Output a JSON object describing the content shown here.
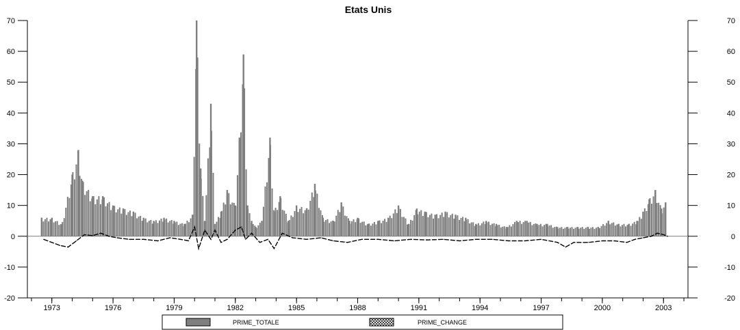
{
  "chart_data": {
    "type": "bar",
    "title": "Etats Unis",
    "xlabel": "",
    "ylabel": "",
    "ylim": [
      -20,
      70
    ],
    "y_ticks": [
      -20,
      -10,
      0,
      10,
      20,
      30,
      40,
      50,
      60,
      70
    ],
    "y_tick_labels": [
      "-20",
      "-10",
      "0",
      "10",
      "20",
      "30",
      "40",
      "50",
      "60",
      "70"
    ],
    "x_range": [
      1971.8,
      2004.2
    ],
    "x_ticks": [
      1973,
      1976,
      1979,
      1982,
      1985,
      1988,
      1991,
      1994,
      1997,
      2000,
      2003
    ],
    "x_tick_labels": [
      "1973",
      "1976",
      "1979",
      "1982",
      "1985",
      "1988",
      "1991",
      "1994",
      "1997",
      "2000",
      "2003"
    ],
    "grid": false,
    "legend_position": "bottom",
    "colors": {
      "bars": "#7f7f7f",
      "line": "#000000",
      "axis": "#000000"
    },
    "series": [
      {
        "name": "PRIME_TOTALE",
        "kind": "bar",
        "x": [
          1972.5,
          1973.0,
          1973.5,
          1974.0,
          1974.3,
          1974.5,
          1975.0,
          1975.5,
          1976.0,
          1976.5,
          1977.0,
          1977.5,
          1978.0,
          1978.5,
          1979.0,
          1979.5,
          1979.9,
          1980.1,
          1980.3,
          1980.5,
          1980.8,
          1981.0,
          1981.3,
          1981.6,
          1982.0,
          1982.2,
          1982.4,
          1982.6,
          1982.8,
          1983.0,
          1983.3,
          1983.7,
          1983.9,
          1984.2,
          1984.6,
          1985.0,
          1985.5,
          1985.9,
          1986.3,
          1986.8,
          1987.2,
          1987.6,
          1988.0,
          1988.5,
          1989.0,
          1989.5,
          1990.0,
          1990.5,
          1990.9,
          1991.3,
          1991.8,
          1992.3,
          1992.8,
          1993.3,
          1993.8,
          1994.3,
          1994.8,
          1995.3,
          1995.8,
          1996.3,
          1996.8,
          1997.3,
          1997.8,
          1998.3,
          1998.8,
          1999.3,
          1999.8,
          2000.3,
          2000.8,
          2001.3,
          2001.7,
          2002.0,
          2002.3,
          2002.6,
          2002.9,
          2003.1
        ],
        "values": [
          6,
          6,
          4,
          20,
          28,
          18,
          13,
          13,
          10,
          9,
          8,
          6,
          5,
          6,
          5,
          4,
          7,
          70,
          22,
          5,
          43,
          4,
          8,
          15,
          10,
          32,
          59,
          10,
          5,
          3,
          5,
          32,
          8,
          13,
          5,
          10,
          9,
          17,
          6,
          5,
          11,
          5,
          6,
          4,
          5,
          6,
          10,
          4,
          9,
          8,
          7,
          8,
          7,
          6,
          4,
          5,
          4,
          3,
          5,
          5,
          4,
          4,
          3,
          3,
          3,
          3,
          3,
          5,
          4,
          4,
          5,
          8,
          12,
          15,
          9,
          11
        ]
      },
      {
        "name": "PRIME_CHANGE",
        "kind": "line",
        "x": [
          1972.6,
          1973.0,
          1973.4,
          1973.8,
          1974.2,
          1974.6,
          1975.0,
          1975.4,
          1975.8,
          1976.2,
          1976.8,
          1977.5,
          1978.2,
          1978.8,
          1979.3,
          1979.7,
          1980.0,
          1980.2,
          1980.5,
          1980.8,
          1981.0,
          1981.3,
          1981.6,
          1982.0,
          1982.3,
          1982.5,
          1982.8,
          1983.2,
          1983.6,
          1983.9,
          1984.3,
          1984.8,
          1985.5,
          1986.2,
          1986.8,
          1987.5,
          1988.2,
          1989.0,
          1989.8,
          1990.6,
          1991.4,
          1992.2,
          1993.0,
          1993.8,
          1994.6,
          1995.4,
          1996.2,
          1997.0,
          1997.8,
          1998.2,
          1998.6,
          1999.3,
          2000.0,
          2000.6,
          2001.2,
          2001.6,
          2002.0,
          2002.4,
          2002.7,
          2003.0,
          2003.2
        ],
        "values": [
          -1,
          -2,
          -3,
          -3.5,
          -1.5,
          0.5,
          0.2,
          1,
          0,
          -0.5,
          -1,
          -1,
          -1.5,
          -0.5,
          -1,
          -1.5,
          3,
          -4,
          2,
          -1,
          2,
          -2,
          -1,
          2,
          3,
          -1,
          1,
          -2,
          -1,
          -4,
          1,
          -0.5,
          -1,
          -0.5,
          -1.5,
          -2,
          -1,
          -1,
          -1.5,
          -1,
          -1.2,
          -1,
          -1.5,
          -1,
          -1,
          -1.5,
          -1.5,
          -1,
          -2,
          -3.5,
          -2,
          -2,
          -1.5,
          -1.5,
          -2,
          -1,
          -0.5,
          0,
          1,
          0.5,
          0
        ]
      }
    ]
  }
}
